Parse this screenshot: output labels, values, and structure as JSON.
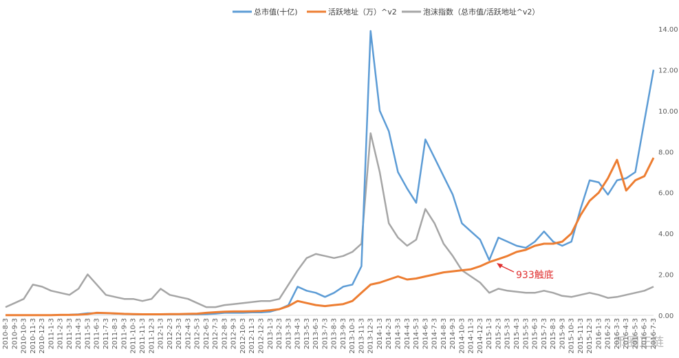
{
  "chart_data": {
    "type": "line",
    "ylim": [
      0,
      14
    ],
    "y_ticks": [
      "0.00",
      "2.00",
      "4.00",
      "6.00",
      "8.00",
      "10.00",
      "12.00",
      "14.00"
    ],
    "legend_position": "top",
    "grid": false,
    "categories": [
      "2010-8-3",
      "2010-9-3",
      "2010-10-3",
      "2010-11-3",
      "2010-12-3",
      "2011-1-3",
      "2011-2-3",
      "2011-3-3",
      "2011-4-3",
      "2011-5-3",
      "2011-6-3",
      "2011-7-3",
      "2011-8-3",
      "2011-9-3",
      "2011-10-3",
      "2011-11-3",
      "2011-12-3",
      "2012-1-3",
      "2012-2-3",
      "2012-3-3",
      "2012-4-3",
      "2012-5-3",
      "2012-6-3",
      "2012-7-3",
      "2012-8-3",
      "2012-9-3",
      "2012-10-3",
      "2012-11-3",
      "2012-12-3",
      "2013-1-3",
      "2013-2-3",
      "2013-3-3",
      "2013-4-3",
      "2013-5-3",
      "2013-6-3",
      "2013-7-3",
      "2013-8-3",
      "2013-9-3",
      "2013-10-3",
      "2013-11-3",
      "2013-12-3",
      "2014-1-3",
      "2014-2-3",
      "2014-3-3",
      "2014-4-3",
      "2014-5-3",
      "2014-6-3",
      "2014-7-3",
      "2014-8-3",
      "2014-9-3",
      "2014-10-3",
      "2014-11-3",
      "2014-12-3",
      "2015-1-3",
      "2015-2-3",
      "2015-3-3",
      "2015-4-3",
      "2015-5-3",
      "2015-6-3",
      "2015-7-3",
      "2015-8-3",
      "2015-9-3",
      "2015-10-3",
      "2015-11-3",
      "2015-12-3",
      "2016-1-3",
      "2016-2-3",
      "2016-3-3",
      "2016-4-3",
      "2016-5-3",
      "2016-6-3",
      "2016-7-3"
    ],
    "series": [
      {
        "name": "总市值(十亿)",
        "color": "#5b9bd5",
        "values": [
          0.01,
          0.01,
          0.01,
          0.01,
          0.01,
          0.01,
          0.02,
          0.03,
          0.05,
          0.1,
          0.1,
          0.1,
          0.08,
          0.07,
          0.05,
          0.04,
          0.04,
          0.05,
          0.05,
          0.05,
          0.05,
          0.05,
          0.06,
          0.08,
          0.12,
          0.12,
          0.12,
          0.14,
          0.14,
          0.18,
          0.3,
          0.5,
          1.4,
          1.2,
          1.1,
          0.9,
          1.1,
          1.4,
          1.5,
          2.4,
          13.9,
          10.0,
          9.0,
          7.0,
          6.2,
          5.5,
          8.6,
          7.7,
          6.8,
          5.9,
          4.5,
          4.1,
          3.7,
          2.7,
          3.8,
          3.6,
          3.4,
          3.3,
          3.6,
          4.1,
          3.6,
          3.4,
          3.6,
          5.2,
          6.6,
          6.5,
          5.9,
          6.6,
          6.7,
          7.0,
          9.5,
          12.0
        ]
      },
      {
        "name": "活跃地址（万）^v2",
        "color": "#ed7d31",
        "values": [
          0.01,
          0.01,
          0.01,
          0.01,
          0.01,
          0.01,
          0.02,
          0.02,
          0.03,
          0.06,
          0.12,
          0.11,
          0.09,
          0.07,
          0.06,
          0.05,
          0.05,
          0.05,
          0.06,
          0.06,
          0.07,
          0.08,
          0.12,
          0.15,
          0.18,
          0.19,
          0.19,
          0.2,
          0.21,
          0.25,
          0.3,
          0.45,
          0.7,
          0.6,
          0.5,
          0.45,
          0.5,
          0.55,
          0.7,
          1.1,
          1.5,
          1.6,
          1.75,
          1.9,
          1.75,
          1.8,
          1.9,
          2.0,
          2.1,
          2.15,
          2.2,
          2.25,
          2.4,
          2.6,
          2.75,
          2.9,
          3.1,
          3.2,
          3.4,
          3.5,
          3.5,
          3.6,
          4.0,
          4.9,
          5.6,
          6.0,
          6.7,
          7.6,
          6.1,
          6.6,
          6.8,
          7.7
        ]
      },
      {
        "name": "泡沫指数（总市值/活跃地址^v2）",
        "color": "#a5a5a5",
        "values": [
          0.4,
          0.6,
          0.8,
          1.5,
          1.4,
          1.2,
          1.1,
          1.0,
          1.3,
          2.0,
          1.5,
          1.0,
          0.9,
          0.8,
          0.8,
          0.7,
          0.8,
          1.3,
          1.0,
          0.9,
          0.8,
          0.6,
          0.4,
          0.4,
          0.5,
          0.55,
          0.6,
          0.65,
          0.7,
          0.7,
          0.8,
          1.5,
          2.2,
          2.8,
          3.0,
          2.9,
          2.8,
          2.9,
          3.1,
          3.5,
          8.9,
          7.0,
          4.5,
          3.8,
          3.4,
          3.7,
          5.2,
          4.5,
          3.5,
          2.9,
          2.2,
          1.9,
          1.6,
          1.1,
          1.3,
          1.2,
          1.15,
          1.1,
          1.1,
          1.2,
          1.1,
          0.95,
          0.9,
          1.0,
          1.1,
          1.0,
          0.85,
          0.9,
          1.0,
          1.1,
          1.2,
          1.4
        ]
      }
    ],
    "annotation": {
      "text": "933触底"
    }
  },
  "watermark": "币圈正链",
  "colors": {
    "axis": "#d9d9d9",
    "annotation": "#e03030",
    "tick_text": "#595959"
  }
}
